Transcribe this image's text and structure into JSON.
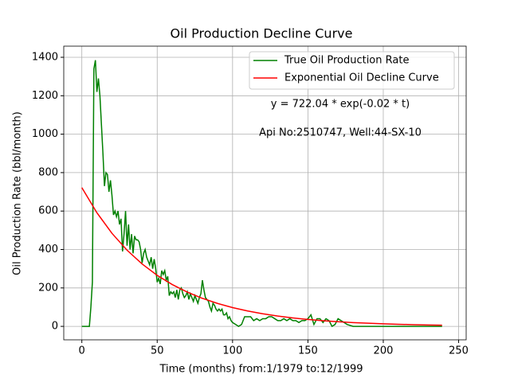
{
  "chart_data": {
    "type": "line",
    "title": "Oil Production Decline Curve",
    "xlabel": "Time (months) from:1/1979 to:12/1999",
    "ylabel": "Oil Production Rate (bbl/month)",
    "annotations": [
      "y = 722.04 * exp(-0.02 * t)",
      "Api No:2510747, Well:44-SX-10"
    ],
    "xlim": [
      -12,
      255
    ],
    "ylim": [
      -70,
      1458
    ],
    "xticks": [
      0,
      50,
      100,
      150,
      200,
      250
    ],
    "yticks": [
      0,
      200,
      400,
      600,
      800,
      1000,
      1200,
      1400
    ],
    "grid": true,
    "legend": "upper right",
    "series": [
      {
        "name": "True Oil Production Rate",
        "color": "#008000",
        "x": [
          0,
          1,
          2,
          3,
          4,
          5,
          6,
          7,
          8,
          9,
          10,
          11,
          12,
          13,
          14,
          15,
          16,
          17,
          18,
          19,
          20,
          21,
          22,
          23,
          24,
          25,
          26,
          27,
          28,
          29,
          30,
          31,
          32,
          33,
          34,
          35,
          36,
          37,
          38,
          39,
          40,
          41,
          42,
          43,
          44,
          45,
          46,
          47,
          48,
          49,
          50,
          51,
          52,
          53,
          54,
          55,
          56,
          57,
          58,
          59,
          60,
          61,
          62,
          63,
          64,
          65,
          66,
          67,
          68,
          69,
          70,
          71,
          72,
          73,
          74,
          75,
          76,
          77,
          78,
          79,
          80,
          81,
          82,
          83,
          84,
          85,
          86,
          87,
          88,
          89,
          90,
          91,
          92,
          93,
          94,
          95,
          96,
          97,
          98,
          99,
          100,
          102,
          104,
          106,
          108,
          110,
          112,
          114,
          116,
          118,
          120,
          122,
          124,
          126,
          128,
          130,
          132,
          134,
          136,
          138,
          140,
          142,
          144,
          146,
          148,
          150,
          152,
          154,
          156,
          158,
          160,
          162,
          164,
          166,
          168,
          170,
          172,
          174,
          176,
          180,
          239
        ],
        "values": [
          0,
          0,
          0,
          0,
          0,
          0,
          100,
          230,
          1340,
          1385,
          1220,
          1290,
          1200,
          1050,
          900,
          730,
          800,
          790,
          700,
          760,
          680,
          580,
          600,
          570,
          600,
          530,
          560,
          390,
          480,
          600,
          420,
          530,
          400,
          480,
          380,
          470,
          450,
          450,
          440,
          400,
          330,
          380,
          400,
          360,
          340,
          320,
          360,
          300,
          350,
          300,
          230,
          250,
          220,
          290,
          270,
          290,
          240,
          260,
          160,
          180,
          170,
          180,
          150,
          190,
          140,
          190,
          200,
          170,
          150,
          160,
          180,
          140,
          170,
          150,
          130,
          160,
          140,
          120,
          150,
          170,
          240,
          190,
          150,
          140,
          130,
          100,
          80,
          120,
          110,
          90,
          80,
          90,
          80,
          90,
          60,
          60,
          70,
          40,
          50,
          30,
          20,
          10,
          0,
          10,
          50,
          50,
          50,
          30,
          40,
          30,
          40,
          40,
          50,
          50,
          40,
          30,
          30,
          40,
          30,
          40,
          30,
          30,
          20,
          30,
          30,
          40,
          60,
          10,
          40,
          40,
          20,
          40,
          30,
          0,
          10,
          40,
          30,
          20,
          10,
          0,
          0
        ]
      },
      {
        "name": "Exponential Oil Decline Curve",
        "color": "#ff0000",
        "x": [
          0,
          10,
          20,
          30,
          40,
          50,
          60,
          70,
          80,
          90,
          100,
          110,
          120,
          130,
          140,
          150,
          160,
          170,
          180,
          190,
          200,
          210,
          220,
          230,
          239
        ],
        "values": [
          722.0,
          591.2,
          484.0,
          396.3,
          324.5,
          265.6,
          217.5,
          178.1,
          145.8,
          119.4,
          97.7,
          80.0,
          65.5,
          53.6,
          43.9,
          35.9,
          29.4,
          24.1,
          19.7,
          16.2,
          13.2,
          10.8,
          8.9,
          7.3,
          6.1
        ]
      }
    ]
  }
}
